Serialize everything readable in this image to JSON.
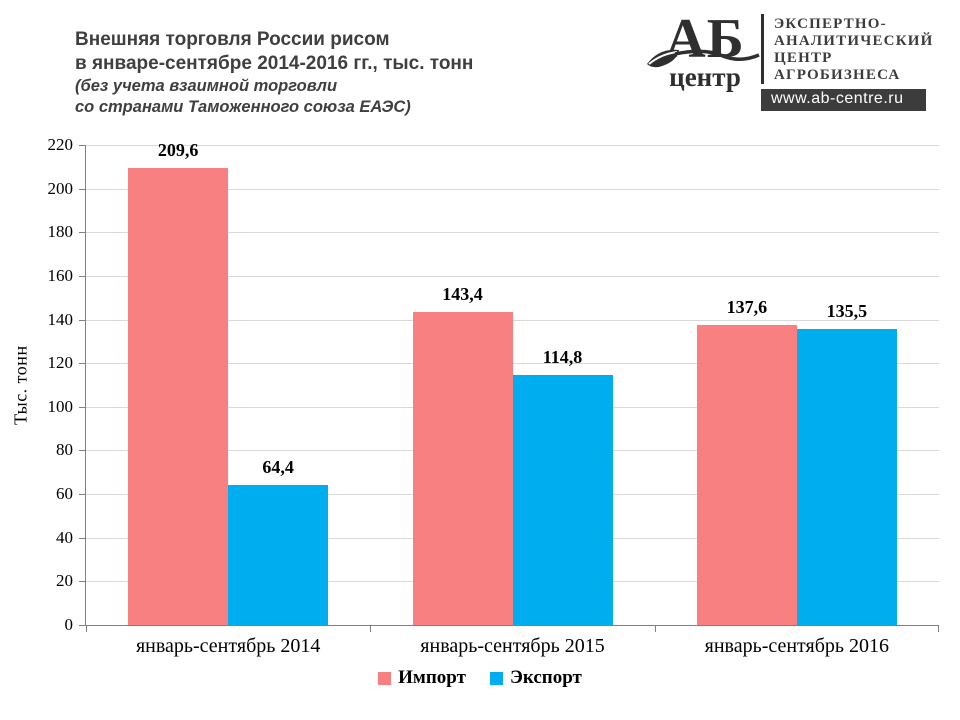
{
  "header": {
    "title_line1": "Внешняя торговля России рисом",
    "title_line2": "в январе-сентябре 2014-2016 гг., тыс. тонн",
    "subtitle_line1": "(без учета взаимной торговли",
    "subtitle_line2": "со странами Таможенного союза ЕАЭС)"
  },
  "logo": {
    "acronym": "АБ",
    "acronym_sub": "центр",
    "org_lines": [
      "ЭКСПЕРТНО-",
      "АНАЛИТИЧЕСКИЙ",
      "ЦЕНТР",
      "АГРОБИЗНЕСА"
    ],
    "website": "www.ab-centre.ru"
  },
  "chart_data": {
    "type": "bar",
    "categories": [
      "январь-сентябрь 2014",
      "январь-сентябрь 2015",
      "январь-сентябрь 2016"
    ],
    "series": [
      {
        "name": "Импорт",
        "color": "#f98080",
        "values": [
          209.6,
          143.4,
          137.6
        ],
        "value_labels": [
          "209,6",
          "143,4",
          "137,6"
        ]
      },
      {
        "name": "Экспорт",
        "color": "#00aeef",
        "values": [
          64.4,
          114.8,
          135.5
        ],
        "value_labels": [
          "64,4",
          "114,8",
          "135,5"
        ]
      }
    ],
    "ylabel": "Тыс. тонн",
    "xlabel": "",
    "ylim": [
      0,
      220
    ],
    "yticks": [
      0,
      20,
      40,
      60,
      80,
      100,
      120,
      140,
      160,
      180,
      200,
      220
    ],
    "grid": true,
    "legend_position": "bottom"
  },
  "colors": {
    "import": "#f98080",
    "export": "#00aeef",
    "gridline": "#d9d9d9",
    "axis": "#808080",
    "heading_text": "#3f3f3f",
    "website_bar_bg": "#3c3c3c"
  }
}
